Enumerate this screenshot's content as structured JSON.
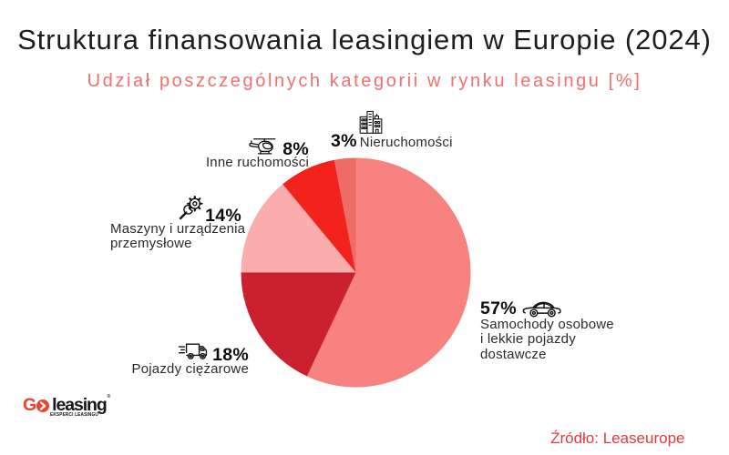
{
  "header": {
    "title": "Struktura finansowania leasingiem w Europie (2024)",
    "subtitle": "Udział poszczególnych kategorii w rynku leasingu [%]"
  },
  "chart_data": {
    "type": "pie",
    "title": "Struktura finansowania leasingiem w Europie (2024)",
    "subtitle": "Udział poszczególnych kategorii w rynku leasingu [%]",
    "unit": "%",
    "direction": "clockwise",
    "start_angle_deg": 0,
    "legend_position": "around",
    "segments": [
      {
        "label": "Samochody osobowe i lekkie pojazdy dostawcze",
        "value": 57,
        "pct_label": "57%",
        "color": "#f8827f",
        "icon": "car-icon"
      },
      {
        "label": "Pojazdy ciężarowe",
        "value": 18,
        "pct_label": "18%",
        "color": "#cb202e",
        "icon": "truck-icon"
      },
      {
        "label": "Maszyny i urządzenia przemysłowe",
        "value": 14,
        "pct_label": "14%",
        "color": "#fbacac",
        "icon": "gear-wrench-icon"
      },
      {
        "label": "Inne ruchomości",
        "value": 8,
        "pct_label": "8%",
        "color": "#f2221d",
        "icon": "helicopter-icon"
      },
      {
        "label": "Nieruchomości",
        "value": 3,
        "pct_label": "3%",
        "color": "#ed6c68",
        "icon": "building-icon"
      }
    ]
  },
  "footer": {
    "logo": {
      "text_go": "G",
      "text_leasing": "leasing",
      "registered_mark": "®",
      "tagline": "EKSPERCI LEASINGU"
    },
    "source": "Źródło: Leaseurope"
  },
  "colors": {
    "background": "#ffffff",
    "title": "#1d1d1f",
    "subtitle": "#f0706c",
    "source": "#e13a3c",
    "logo_accent": "#e8462b",
    "label_text": "#2b2b2b"
  }
}
